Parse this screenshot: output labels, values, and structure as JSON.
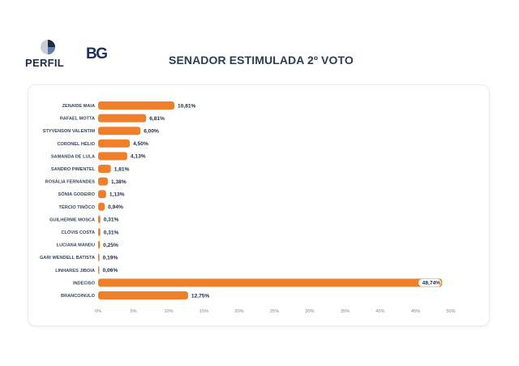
{
  "header": {
    "brand_perfil": "PERFIL",
    "brand_bg": "BG",
    "title": "SENADOR ESTIMULADA 2º VOTO"
  },
  "colors": {
    "bar": "#f07f2c",
    "title": "#2d3e50",
    "brand_dark": "#1e3266"
  },
  "chart_data": {
    "type": "bar",
    "orientation": "horizontal",
    "title": "SENADOR ESTIMULADA 2º VOTO",
    "categories": [
      "ZENAIDE MAIA",
      "RAFAEL MOTTA",
      "STYVENSON VALENTIM",
      "CORONEL HÉLIO",
      "SAMANDA DE LULA",
      "SANDRO PIMENTEL",
      "ROSÁLIA FERNANDES",
      "SÔNIA GODEIRO",
      "TÉRCIO TINÔCO",
      "GUILHERME MOSCA",
      "CLÓVIS COSTA",
      "LUCIANA MANDU",
      "GARI WENDELL BATISTA",
      "LINHARES JIBOIA",
      "INDECISO",
      "BRANCO/NULO"
    ],
    "values": [
      10.81,
      6.81,
      6.0,
      4.5,
      4.13,
      1.81,
      1.38,
      1.13,
      0.94,
      0.31,
      0.31,
      0.25,
      0.19,
      0.06,
      48.74,
      12.75
    ],
    "value_labels": [
      "10,81%",
      "6,81%",
      "6,00%",
      "4,50%",
      "4,13%",
      "1,81%",
      "1,38%",
      "1,13%",
      "0,94%",
      "0,31%",
      "0,31%",
      "0,25%",
      "0,19%",
      "0,06%",
      "48,74%",
      "12,75%"
    ],
    "xlim": [
      0,
      50
    ],
    "ticks": [
      0,
      5,
      10,
      15,
      20,
      25,
      30,
      35,
      40,
      45,
      50
    ],
    "tick_labels": [
      "0%",
      "5%",
      "10%",
      "15%",
      "20%",
      "25%",
      "30%",
      "35%",
      "40%",
      "45%",
      "50%"
    ],
    "grid": false,
    "legend": "none"
  }
}
